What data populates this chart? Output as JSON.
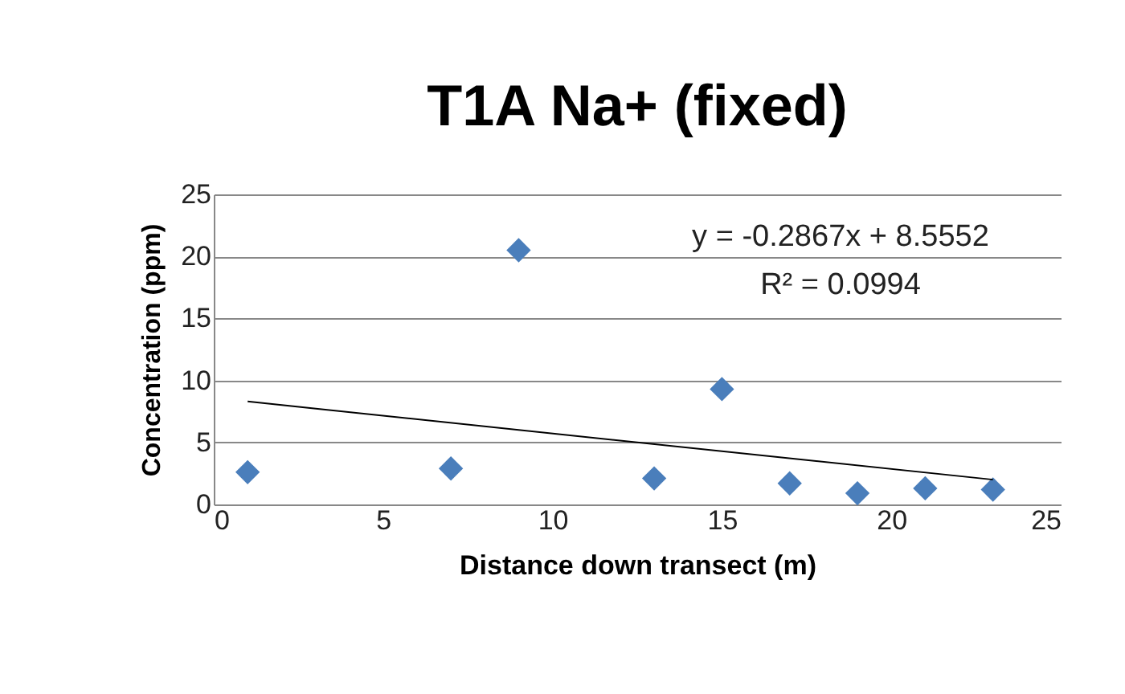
{
  "chart_data": {
    "type": "scatter",
    "title": "T1A Na+ (fixed)",
    "xlabel": "Distance down transect (m)",
    "ylabel": "Concentration (ppm)",
    "x": [
      1,
      7,
      9,
      13,
      15,
      17,
      19,
      21,
      23
    ],
    "series": [
      {
        "color": "#4a7ebb",
        "values": [
          2.6,
          2.9,
          20.5,
          2.1,
          9.3,
          1.7,
          0.9,
          1.3,
          1.2
        ],
        "marker": "diamond"
      },
      {
        "type": "line",
        "color": "#000000",
        "x": [
          1,
          23
        ],
        "values": [
          8.3,
          2.0
        ],
        "line_style": "solid"
      }
    ],
    "annotations": [
      "y = -0.2867x + 8.5552",
      "R² = 0.0994"
    ],
    "xlim": [
      0,
      25
    ],
    "xticks": [
      0,
      5,
      10,
      15,
      20,
      25
    ],
    "ylim": [
      0,
      25
    ],
    "yticks": [
      0,
      5,
      10,
      15,
      20,
      25
    ],
    "grid": "y"
  }
}
